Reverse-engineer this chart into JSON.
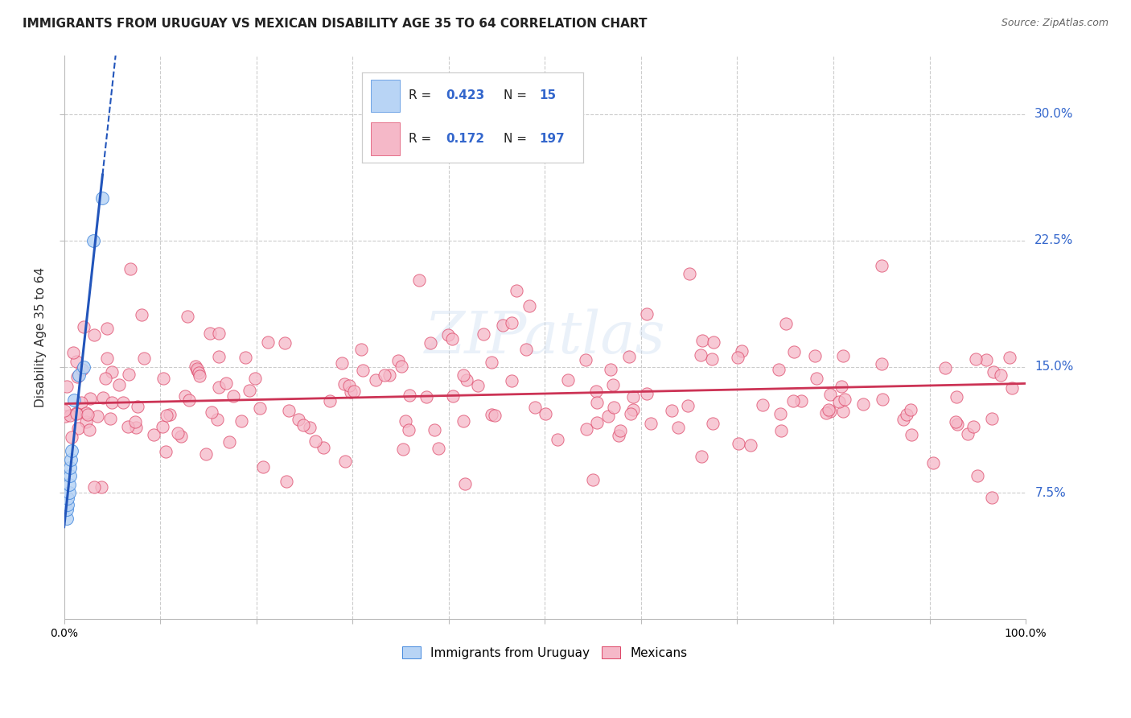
{
  "title": "IMMIGRANTS FROM URUGUAY VS MEXICAN DISABILITY AGE 35 TO 64 CORRELATION CHART",
  "source": "Source: ZipAtlas.com",
  "ylabel": "Disability Age 35 to 64",
  "xlim": [
    0,
    1.0
  ],
  "ylim": [
    0,
    0.335
  ],
  "yticks": [
    0.075,
    0.15,
    0.225,
    0.3
  ],
  "ytick_labels": [
    "7.5%",
    "15.0%",
    "22.5%",
    "30.0%"
  ],
  "xtick_positions": [
    0.0,
    0.5,
    1.0
  ],
  "xtick_labels": [
    "0.0%",
    "",
    "100.0%"
  ],
  "uruguay_R": 0.423,
  "uruguay_N": 15,
  "mexican_R": 0.172,
  "mexican_N": 197,
  "uruguay_fill_color": "#b8d4f5",
  "mexican_fill_color": "#f5b8c8",
  "uruguay_edge_color": "#4488dd",
  "mexican_edge_color": "#dd4466",
  "uruguay_line_color": "#2255bb",
  "mexican_line_color": "#cc3355",
  "watermark": "ZIPatlas",
  "background_color": "#ffffff",
  "grid_color": "#cccccc",
  "right_label_color": "#3366cc"
}
